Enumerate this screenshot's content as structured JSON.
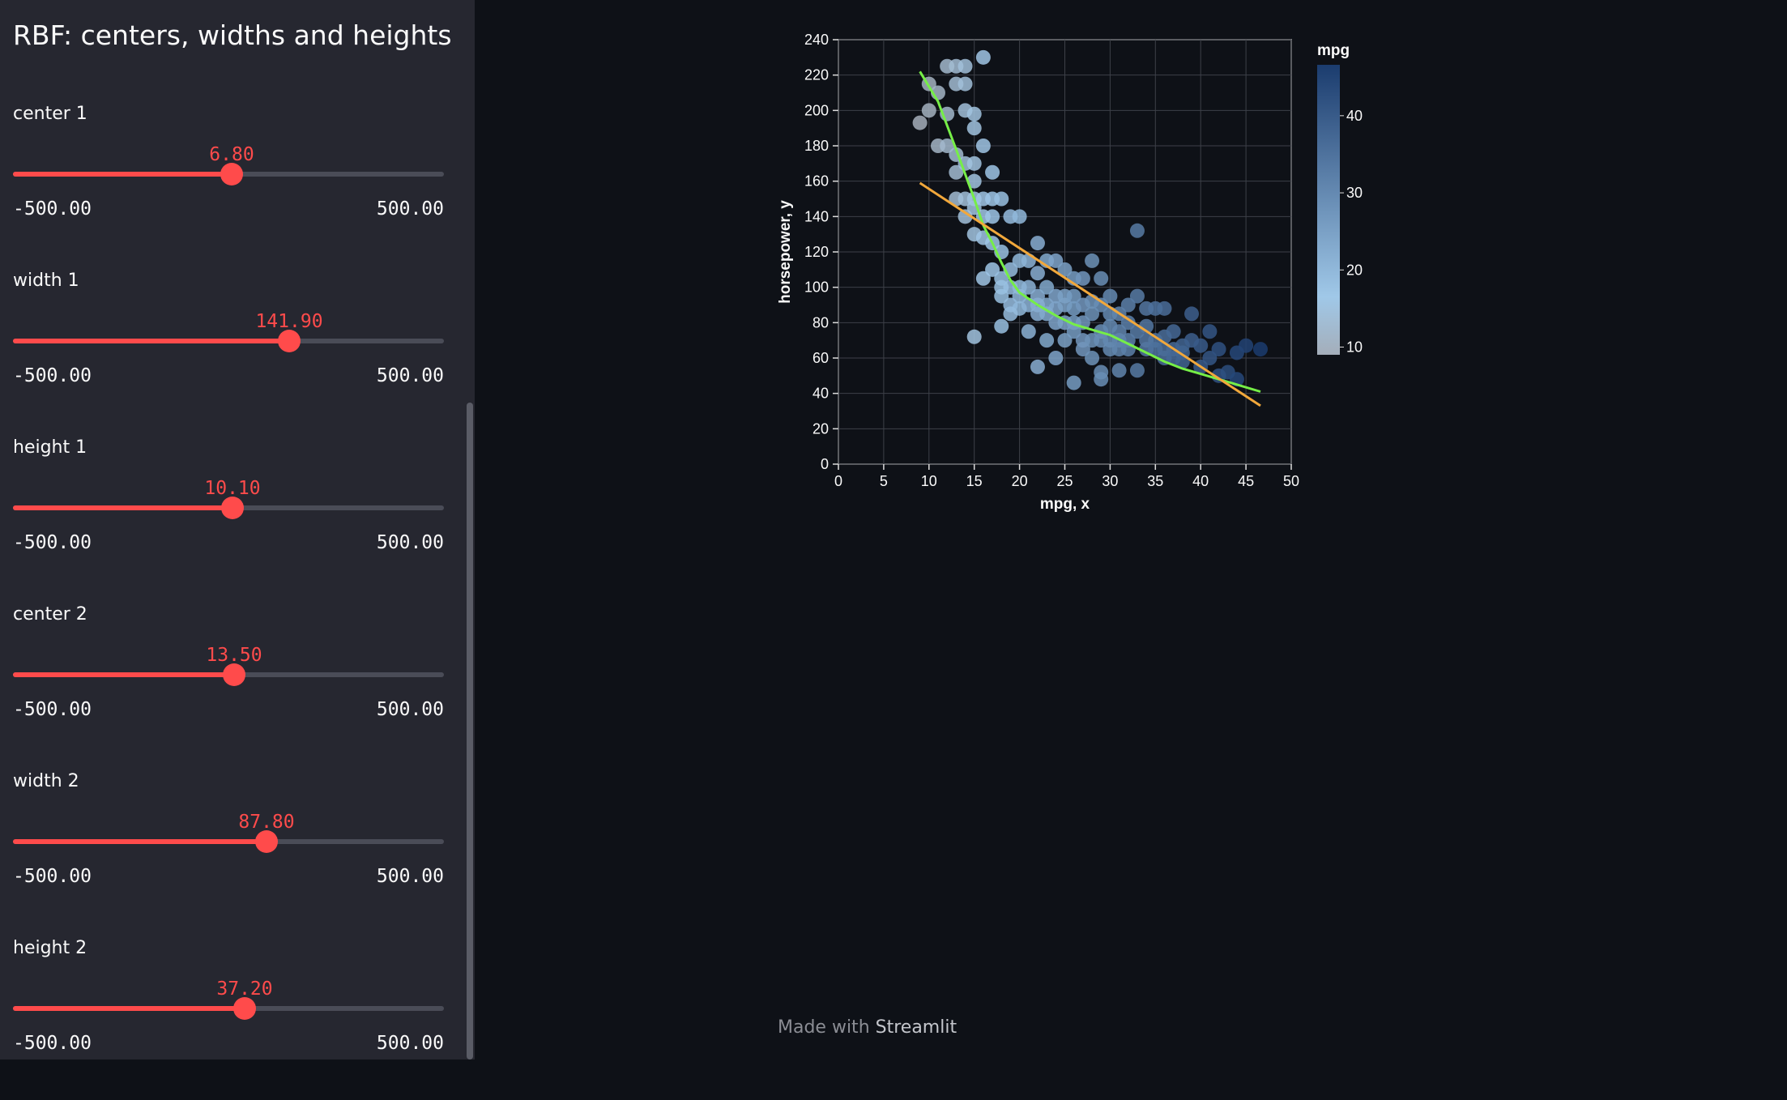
{
  "sidebar": {
    "title": "RBF: centers, widths and heights",
    "sliders": [
      {
        "label": "center 1",
        "value": "6.80",
        "min": "-500.00",
        "max": "500.00",
        "fraction": 0.5068
      },
      {
        "label": "width 1",
        "value": "141.90",
        "min": "-500.00",
        "max": "500.00",
        "fraction": 0.6419
      },
      {
        "label": "height 1",
        "value": "10.10",
        "min": "-500.00",
        "max": "500.00",
        "fraction": 0.5101
      },
      {
        "label": "center 2",
        "value": "13.50",
        "min": "-500.00",
        "max": "500.00",
        "fraction": 0.5135
      },
      {
        "label": "width 2",
        "value": "87.80",
        "min": "-500.00",
        "max": "500.00",
        "fraction": 0.5878
      },
      {
        "label": "height 2",
        "value": "37.20",
        "min": "-500.00",
        "max": "500.00",
        "fraction": 0.5372
      }
    ]
  },
  "footer": {
    "prefix": "Made with ",
    "brand": "Streamlit"
  },
  "colors": {
    "accent": "#ff4b4b",
    "fit_green": "#76ee47",
    "fit_orange": "#f2a83b"
  },
  "chart_data": {
    "type": "scatter",
    "xlabel": "mpg, x",
    "ylabel": "horsepower, y",
    "xlim": [
      0,
      50
    ],
    "ylim": [
      0,
      240
    ],
    "xticks": [
      0,
      5,
      10,
      15,
      20,
      25,
      30,
      35,
      40,
      45,
      50
    ],
    "yticks": [
      0,
      20,
      40,
      60,
      80,
      100,
      120,
      140,
      160,
      180,
      200,
      220,
      240
    ],
    "grid": true,
    "legend": {
      "title": "mpg",
      "type": "gradient",
      "ticks": [
        10,
        20,
        30,
        40
      ],
      "range": [
        9,
        46.6
      ],
      "placement": "right"
    },
    "points": [
      [
        9,
        193
      ],
      [
        10,
        215
      ],
      [
        10,
        200
      ],
      [
        11,
        210
      ],
      [
        11,
        180
      ],
      [
        12,
        225
      ],
      [
        12,
        198
      ],
      [
        12,
        180
      ],
      [
        13,
        225
      ],
      [
        13,
        215
      ],
      [
        13,
        175
      ],
      [
        13,
        165
      ],
      [
        13,
        150
      ],
      [
        14,
        225
      ],
      [
        14,
        215
      ],
      [
        14,
        200
      ],
      [
        14,
        170
      ],
      [
        14,
        150
      ],
      [
        14,
        140
      ],
      [
        15,
        198
      ],
      [
        15,
        190
      ],
      [
        15,
        170
      ],
      [
        15,
        150
      ],
      [
        15,
        145
      ],
      [
        15,
        72
      ],
      [
        16,
        230
      ],
      [
        16,
        180
      ],
      [
        16,
        150
      ],
      [
        16,
        140
      ],
      [
        16,
        105
      ],
      [
        17,
        165
      ],
      [
        17,
        150
      ],
      [
        17,
        140
      ],
      [
        17,
        110
      ],
      [
        18,
        150
      ],
      [
        18,
        120
      ],
      [
        18,
        105
      ],
      [
        18,
        95
      ],
      [
        18,
        78
      ],
      [
        19,
        140
      ],
      [
        19,
        110
      ],
      [
        19,
        100
      ],
      [
        19,
        90
      ],
      [
        20,
        140
      ],
      [
        20,
        115
      ],
      [
        20,
        100
      ],
      [
        20,
        88
      ],
      [
        21,
        115
      ],
      [
        21,
        100
      ],
      [
        21,
        75
      ],
      [
        22,
        125
      ],
      [
        22,
        108
      ],
      [
        22,
        95
      ],
      [
        22,
        85
      ],
      [
        22,
        55
      ],
      [
        23,
        115
      ],
      [
        23,
        100
      ],
      [
        23,
        90
      ],
      [
        23,
        70
      ],
      [
        24,
        115
      ],
      [
        24,
        95
      ],
      [
        24,
        88
      ],
      [
        24,
        60
      ],
      [
        25,
        110
      ],
      [
        25,
        95
      ],
      [
        25,
        90
      ],
      [
        25,
        70
      ],
      [
        26,
        105
      ],
      [
        26,
        95
      ],
      [
        26,
        88
      ],
      [
        26,
        75
      ],
      [
        26,
        46
      ],
      [
        27,
        105
      ],
      [
        27,
        90
      ],
      [
        27,
        80
      ],
      [
        27,
        65
      ],
      [
        28,
        115
      ],
      [
        28,
        92
      ],
      [
        28,
        85
      ],
      [
        28,
        60
      ],
      [
        29,
        105
      ],
      [
        29,
        90
      ],
      [
        29,
        75
      ],
      [
        29,
        52
      ],
      [
        29,
        48
      ],
      [
        30,
        95
      ],
      [
        30,
        85
      ],
      [
        30,
        78
      ],
      [
        30,
        65
      ],
      [
        31,
        85
      ],
      [
        31,
        75
      ],
      [
        31,
        65
      ],
      [
        31,
        53
      ],
      [
        32,
        90
      ],
      [
        32,
        80
      ],
      [
        32,
        70
      ],
      [
        33,
        132
      ],
      [
        33,
        95
      ],
      [
        33,
        75
      ],
      [
        33,
        53
      ],
      [
        34,
        88
      ],
      [
        34,
        78
      ],
      [
        34,
        65
      ],
      [
        35,
        88
      ],
      [
        35,
        70
      ],
      [
        36,
        88
      ],
      [
        36,
        72
      ],
      [
        36,
        60
      ],
      [
        37,
        75
      ],
      [
        37,
        65
      ],
      [
        38,
        67
      ],
      [
        38,
        63
      ],
      [
        39,
        85
      ],
      [
        39,
        70
      ],
      [
        40,
        67
      ],
      [
        41,
        60
      ],
      [
        41,
        75
      ],
      [
        42,
        65
      ],
      [
        43,
        52
      ],
      [
        44,
        63
      ],
      [
        44,
        48
      ],
      [
        45,
        67
      ],
      [
        46.6,
        65
      ],
      [
        15,
        130
      ],
      [
        15,
        160
      ],
      [
        16,
        128
      ],
      [
        17,
        125
      ],
      [
        18,
        100
      ],
      [
        19,
        85
      ],
      [
        20,
        95
      ],
      [
        21,
        90
      ],
      [
        22,
        90
      ],
      [
        23,
        85
      ],
      [
        24,
        80
      ],
      [
        25,
        80
      ],
      [
        26,
        80
      ],
      [
        27,
        70
      ],
      [
        28,
        70
      ],
      [
        29,
        70
      ],
      [
        30,
        70
      ],
      [
        31,
        70
      ],
      [
        32,
        65
      ],
      [
        34,
        70
      ],
      [
        35,
        65
      ],
      [
        36,
        65
      ],
      [
        37,
        60
      ],
      [
        38,
        58
      ],
      [
        40,
        55
      ],
      [
        42,
        50
      ]
    ],
    "series": [
      {
        "type": "line",
        "color": "#76ee47",
        "points": [
          [
            9,
            222
          ],
          [
            11,
            205
          ],
          [
            13,
            178
          ],
          [
            15,
            150
          ],
          [
            16,
            135
          ],
          [
            17,
            125
          ],
          [
            18,
            114
          ],
          [
            19,
            104
          ],
          [
            20,
            97
          ],
          [
            22,
            90
          ],
          [
            24,
            84
          ],
          [
            26,
            79
          ],
          [
            28,
            76
          ],
          [
            30,
            73
          ],
          [
            32,
            68
          ],
          [
            34,
            63
          ],
          [
            36,
            58
          ],
          [
            38,
            54
          ],
          [
            40,
            51
          ],
          [
            42,
            48
          ],
          [
            44,
            45
          ],
          [
            46.6,
            41
          ]
        ]
      },
      {
        "type": "line",
        "color": "#f2a83b",
        "points": [
          [
            9,
            159
          ],
          [
            46.6,
            33
          ]
        ]
      }
    ]
  }
}
